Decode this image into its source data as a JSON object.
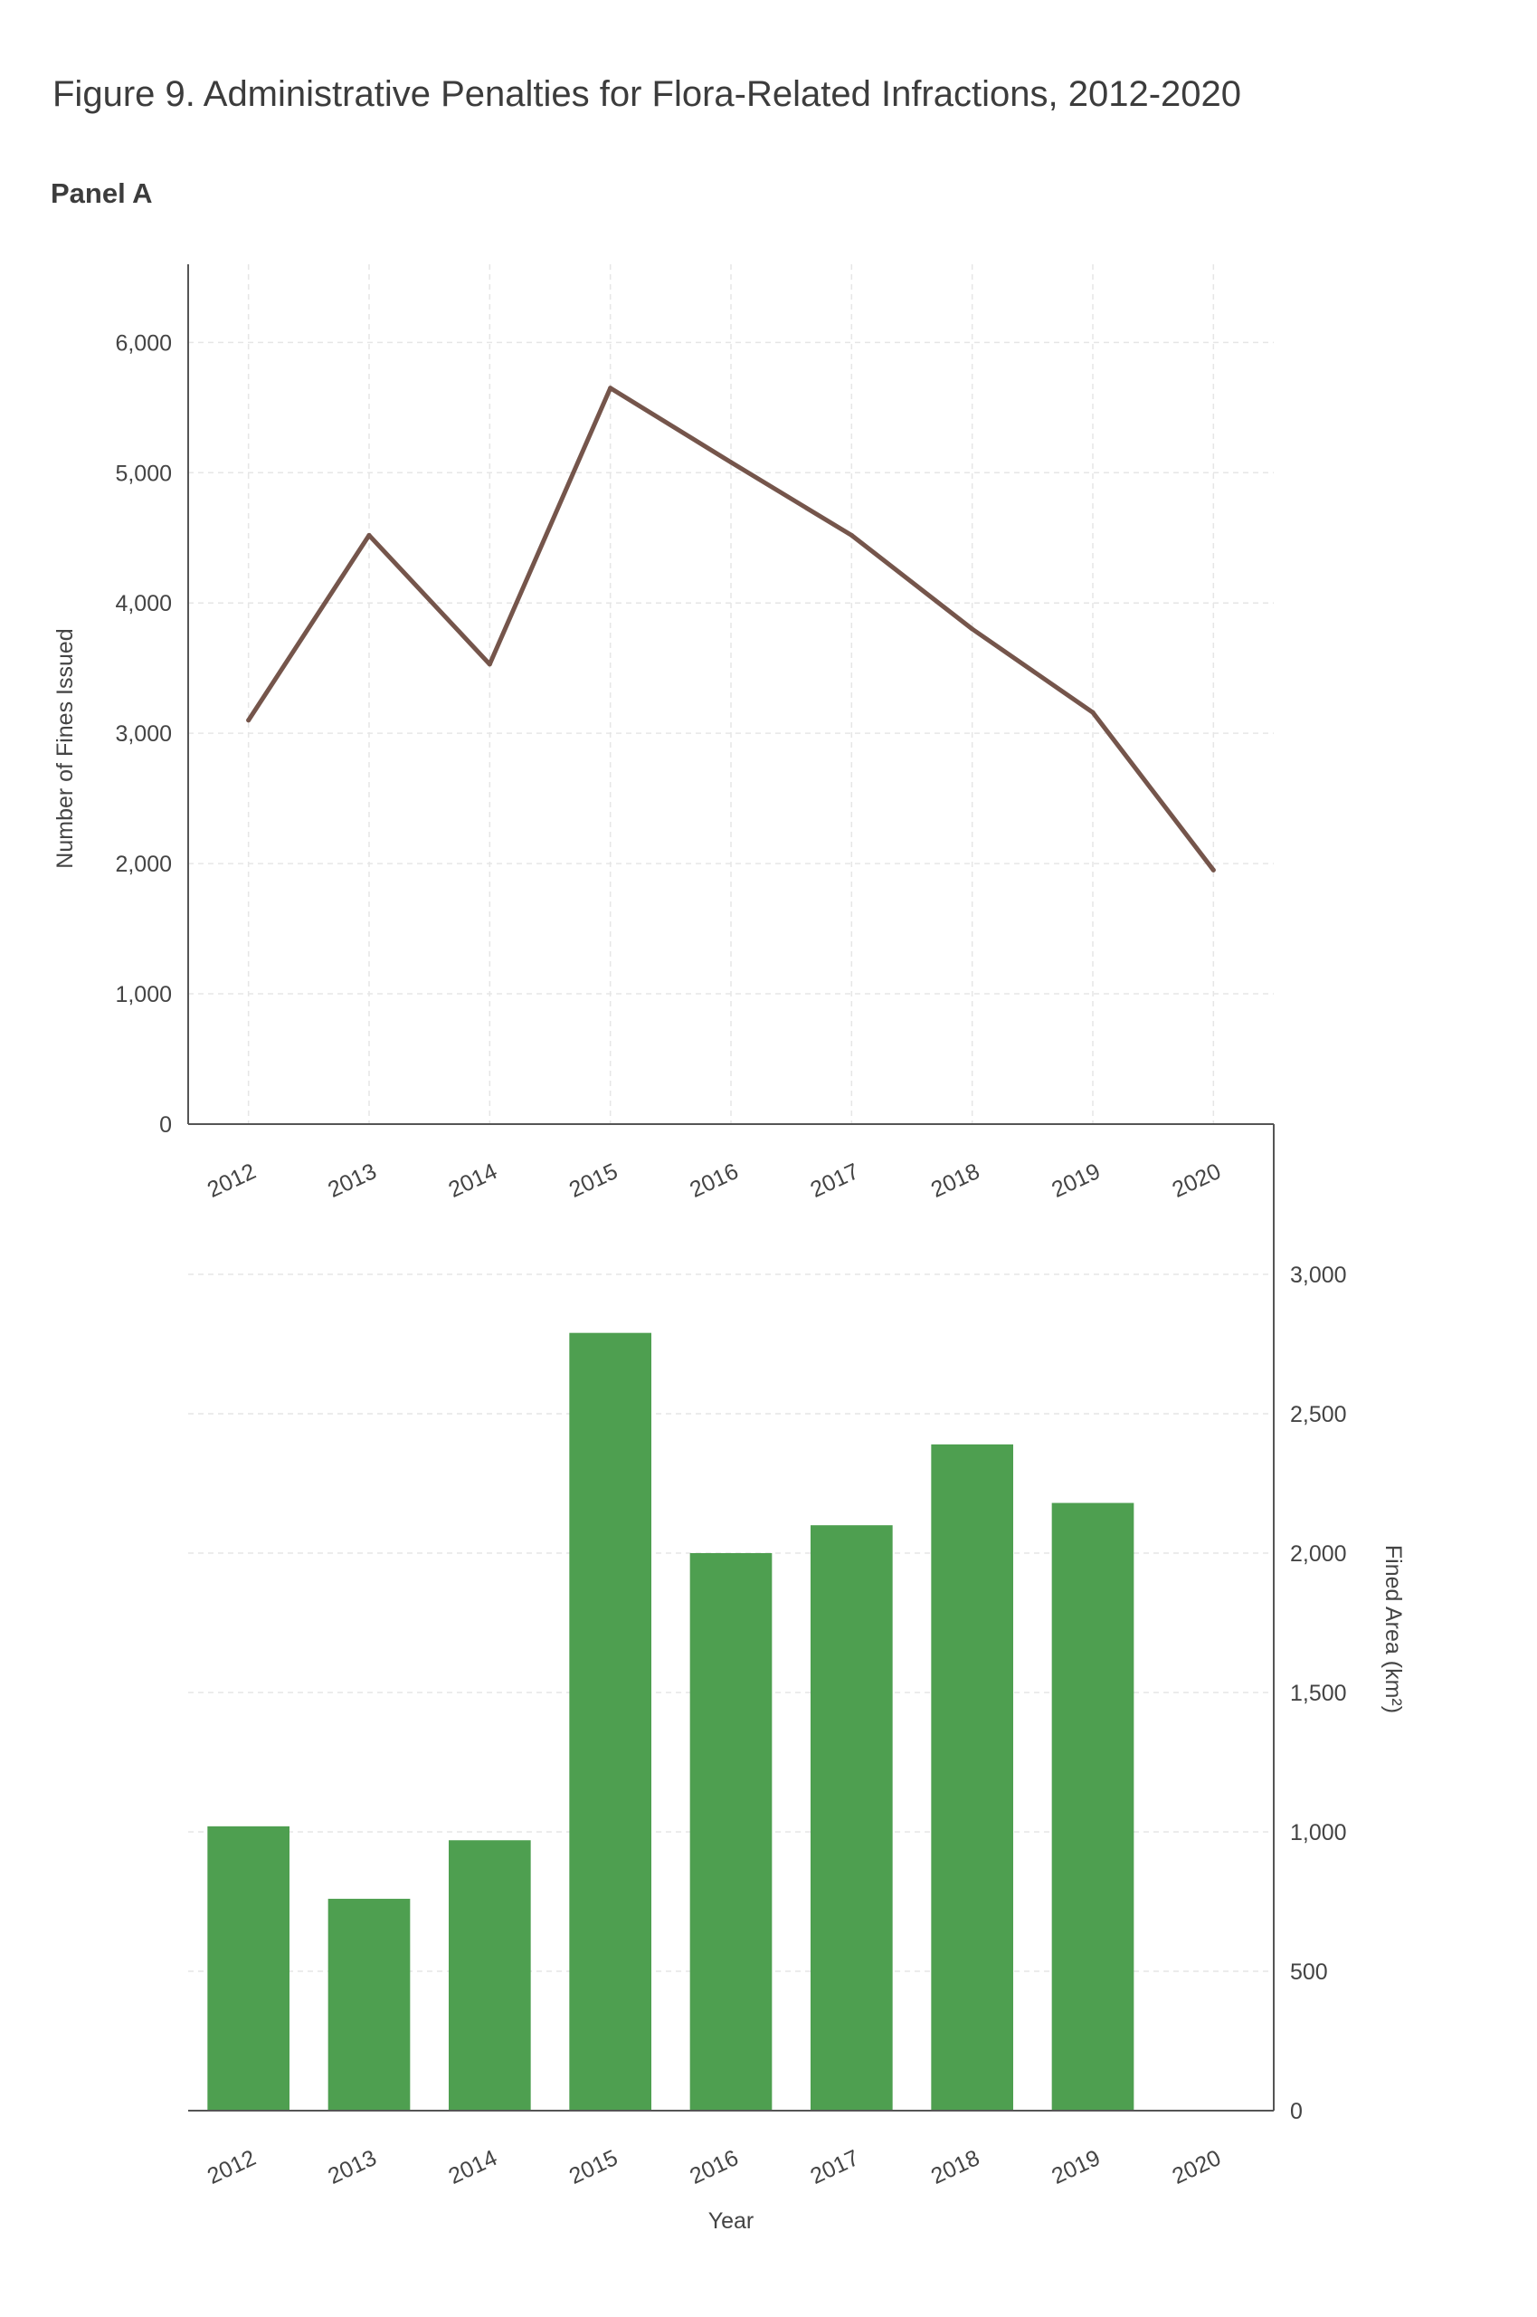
{
  "figure": {
    "title": "Figure 9. Administrative Penalties for Flora-Related Infractions, 2012-2020",
    "panel_label": "Panel A"
  },
  "colors": {
    "line": "#75554b",
    "bar": "#4e9f50",
    "grid": "#e6e6e6",
    "axis": "#555555"
  },
  "chart_data": [
    {
      "type": "line",
      "x": [
        "2012",
        "2013",
        "2014",
        "2015",
        "2016",
        "2017",
        "2018",
        "2019",
        "2020"
      ],
      "series": [
        {
          "values": [
            3100,
            4520,
            3530,
            5650,
            5080,
            4520,
            3800,
            3160,
            1950
          ]
        }
      ],
      "xlabel": "",
      "ylabel": "Number of Fines Issued",
      "ylim": [
        0,
        6600
      ],
      "yticks": [
        0,
        1000,
        2000,
        3000,
        4000,
        5000,
        6000
      ],
      "ytick_labels": [
        "0",
        "1,000",
        "2,000",
        "3,000",
        "4,000",
        "5,000",
        "6,000"
      ],
      "grid": true,
      "y_axis_side": "left"
    },
    {
      "type": "bar",
      "categories": [
        "2012",
        "2013",
        "2014",
        "2015",
        "2016",
        "2017",
        "2018",
        "2019",
        "2020"
      ],
      "values": [
        1020,
        760,
        970,
        2790,
        2000,
        2100,
        2390,
        2180,
        0
      ],
      "xlabel": "Year",
      "ylabel": "Fined Area (km²)",
      "ylim": [
        0,
        3000
      ],
      "yticks": [
        0,
        500,
        1000,
        1500,
        2000,
        2500,
        3000
      ],
      "ytick_labels": [
        "0",
        "500",
        "1,000",
        "1,500",
        "2,000",
        "2,500",
        "3,000"
      ],
      "grid": true,
      "y_axis_side": "right"
    }
  ]
}
